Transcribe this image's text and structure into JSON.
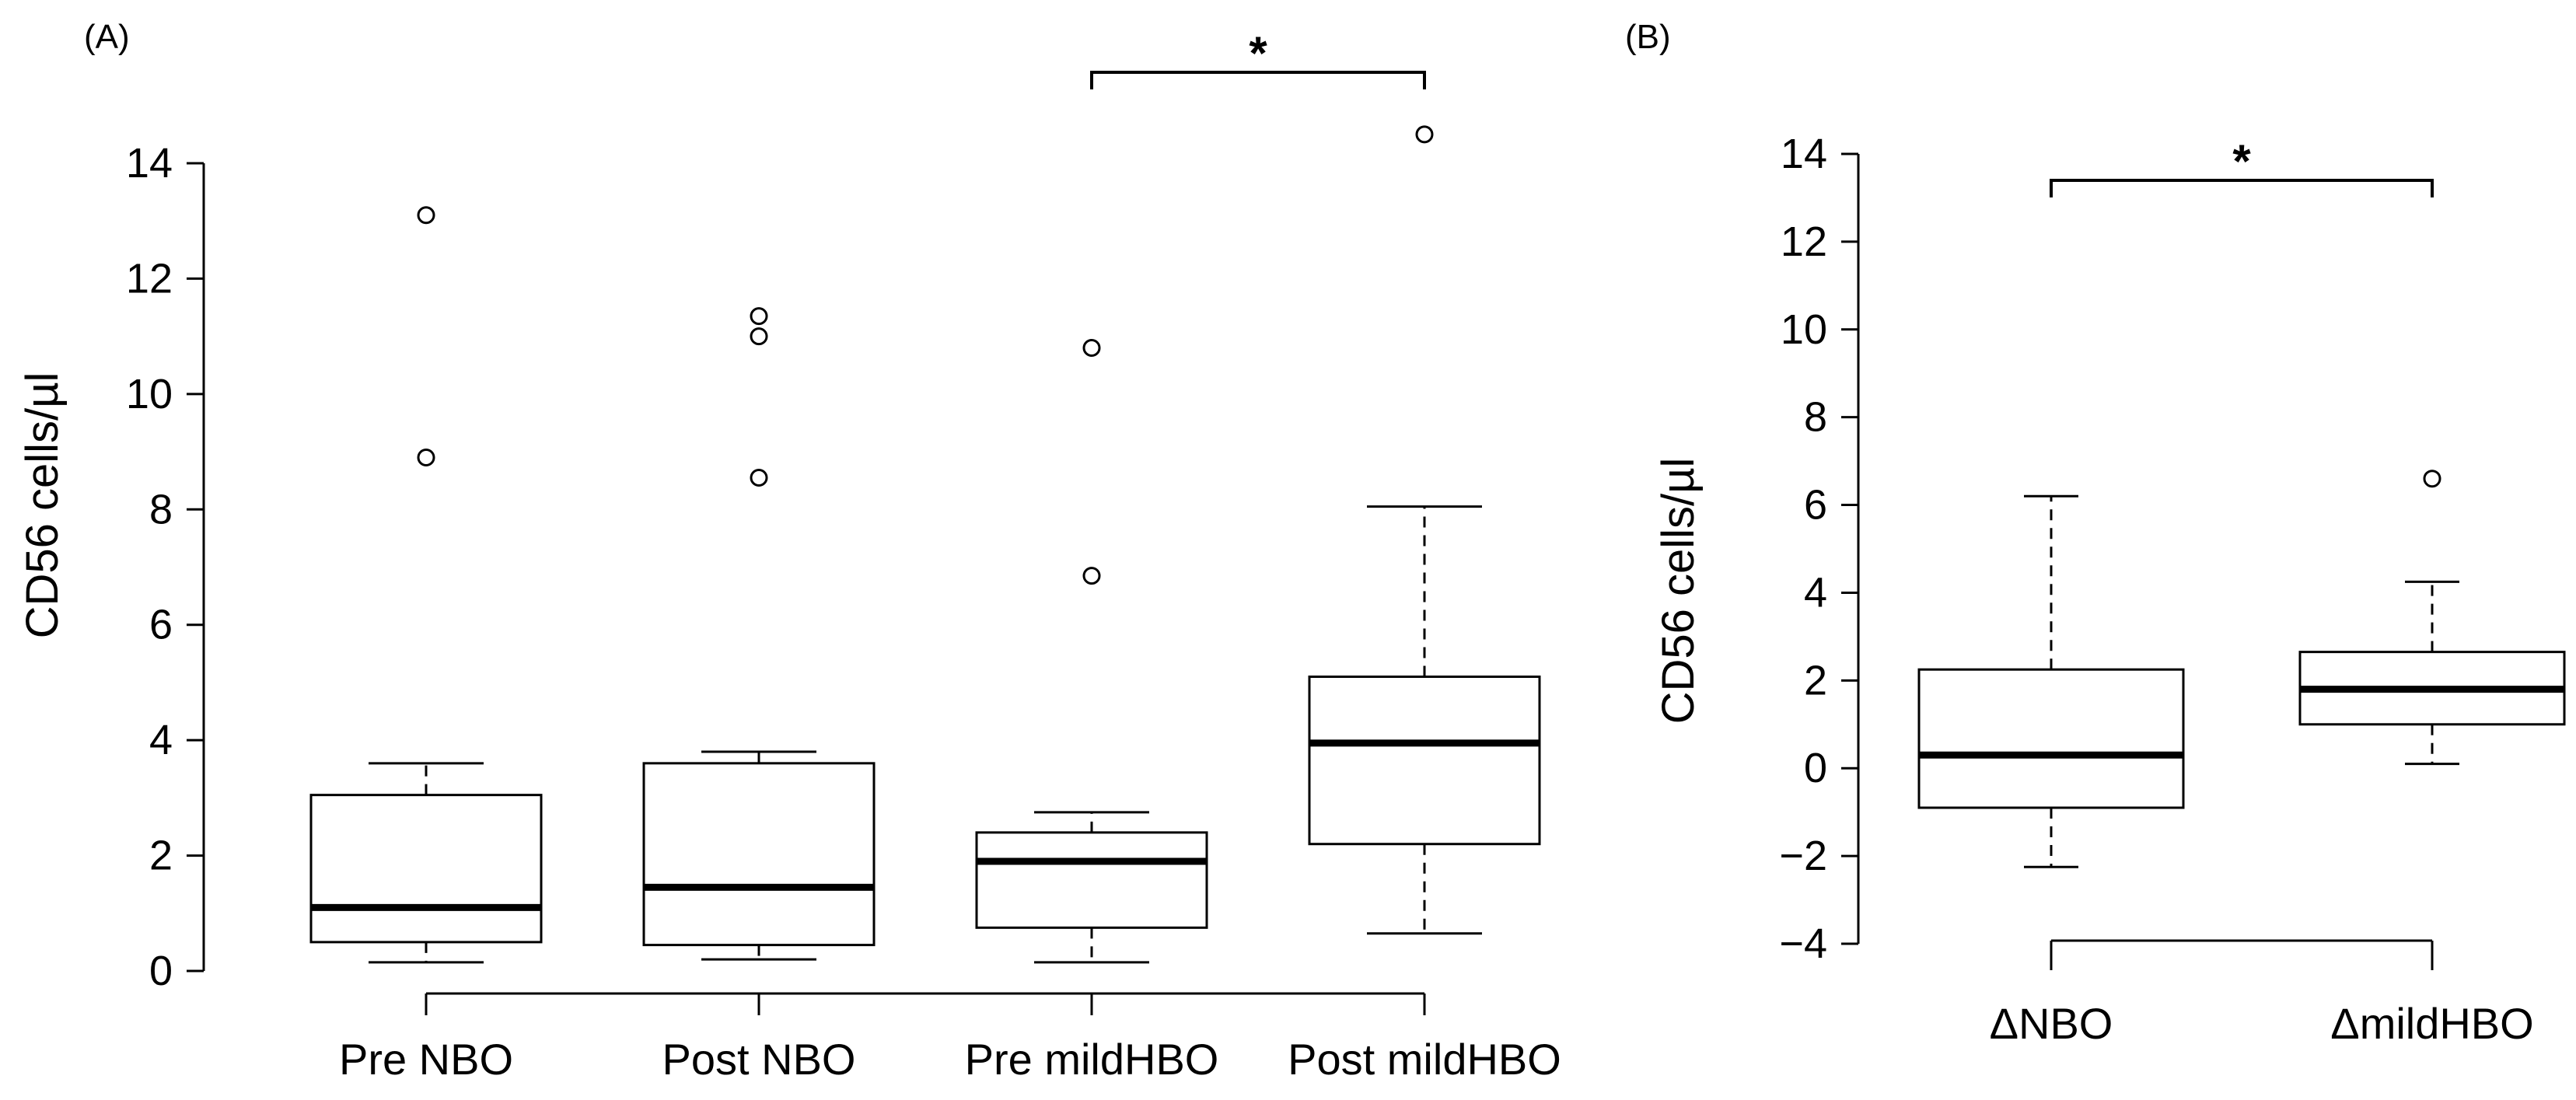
{
  "colors": {
    "stroke": "#000000",
    "background": "#ffffff"
  },
  "chart_data": [
    {
      "panel": "(A)",
      "type": "box",
      "ylabel": "CD56 cells/µl",
      "ylim": [
        0,
        14
      ],
      "yticks": [
        "0",
        "2",
        "4",
        "6",
        "8",
        "10",
        "12",
        "14"
      ],
      "categories": [
        "Pre NBO",
        "Post NBO",
        "Pre mildHBO",
        "Post mildHBO"
      ],
      "boxes": [
        {
          "name": "Pre NBO",
          "whisker_low": 0.15,
          "q1": 0.5,
          "median": 1.1,
          "q3": 3.05,
          "whisker_high": 3.6,
          "outliers": [
            8.9,
            13.1
          ]
        },
        {
          "name": "Post NBO",
          "whisker_low": 0.2,
          "q1": 0.45,
          "median": 1.45,
          "q3": 3.6,
          "whisker_high": 3.8,
          "outliers": [
            8.55,
            11.0,
            11.35
          ]
        },
        {
          "name": "Pre mildHBO",
          "whisker_low": 0.15,
          "q1": 0.75,
          "median": 1.9,
          "q3": 2.4,
          "whisker_high": 2.75,
          "outliers": [
            6.85,
            10.8
          ]
        },
        {
          "name": "Post mildHBO",
          "whisker_low": 0.65,
          "q1": 2.2,
          "median": 3.95,
          "q3": 5.1,
          "whisker_high": 8.05,
          "outliers": [
            14.5
          ]
        }
      ],
      "significance": {
        "between": [
          "Pre mildHBO",
          "Post mildHBO"
        ],
        "label": "*"
      }
    },
    {
      "panel": "(B)",
      "type": "box",
      "ylabel": "CD56 cells/µl",
      "ylim": [
        -4,
        14
      ],
      "yticks": [
        "−4",
        "−2",
        "0",
        "2",
        "4",
        "6",
        "8",
        "10",
        "12",
        "14"
      ],
      "categories": [
        "ΔNBO",
        "ΔmildHBO"
      ],
      "boxes": [
        {
          "name": "ΔNBO",
          "whisker_low": -2.25,
          "q1": -0.9,
          "median": 0.3,
          "q3": 2.25,
          "whisker_high": 6.2,
          "outliers": []
        },
        {
          "name": "ΔmildHBO",
          "whisker_low": 0.1,
          "q1": 1.0,
          "median": 1.8,
          "q3": 2.65,
          "whisker_high": 4.25,
          "outliers": [
            6.6
          ]
        }
      ],
      "significance": {
        "between": [
          "ΔNBO",
          "ΔmildHBO"
        ],
        "label": "*"
      }
    }
  ]
}
